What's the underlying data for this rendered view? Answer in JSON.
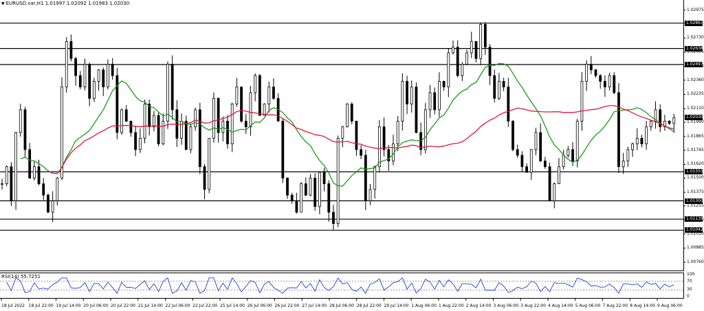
{
  "header": {
    "symbol_line": "EURUSD.var,H1  1.01997 1.02092 1.01983 1.02030",
    "collapse_icon": "triangle-down-icon"
  },
  "price_axis": {
    "ticks": [
      "1.02975",
      "1.02861",
      "1.02730",
      "1.02605",
      "1.02480",
      "1.02360",
      "1.02235",
      "1.02110",
      "1.01990",
      "1.01865",
      "1.01745",
      "1.01620",
      "1.01500",
      "1.01375",
      "1.01255",
      "1.01130",
      "1.01010",
      "1.00885",
      "1.00760"
    ],
    "ylim": [
      1.007,
      1.0304
    ]
  },
  "levels": [
    {
      "price": 1.02861,
      "label": "1.02861"
    },
    {
      "price": 1.02638,
      "label": "1.02638"
    },
    {
      "price": 1.02497,
      "label": "1.02497"
    },
    {
      "price": 1.0203,
      "label": "1.02030"
    },
    {
      "price": 1.01555,
      "label": "1.01555"
    },
    {
      "price": 1.013,
      "label": "1.01300"
    },
    {
      "price": 1.01139,
      "label": "1.01139"
    },
    {
      "price": 1.01042,
      "label": "1.01042"
    }
  ],
  "horizontal_lines": [
    1.02861,
    1.02638,
    1.02497,
    1.01555,
    1.013,
    1.01139,
    1.01042
  ],
  "current_price": "1.02030",
  "time_axis": [
    "18 Jul 2022",
    "18 Jul 22:00",
    "19 Jul 14:00",
    "20 Jul 06:00",
    "20 Jul 22:00",
    "21 Jul 14:00",
    "22 Jul 06:00",
    "22 Jul 22:00",
    "25 Jul 14:00",
    "26 Jul 06:00",
    "26 Jul 22:00",
    "27 Jul 14:00",
    "28 Jul 06:00",
    "28 Jul 22:00",
    "29 Jul 14:00",
    "1 Aug 06:00",
    "1 Aug 22:00",
    "2 Aug 14:00",
    "3 Aug 06:00",
    "3 Aug 22:00",
    "4 Aug 14:00",
    "5 Aug 06:00",
    "7 Aug 22:00",
    "8 Aug 14:00",
    "9 Aug 06:00"
  ],
  "rsi": {
    "title": "RSI(14) 55.7251",
    "levels": [
      "100",
      "70",
      "30",
      "0"
    ],
    "level_values": [
      100,
      70,
      30,
      0
    ]
  },
  "chart_data": {
    "type": "candlestick",
    "symbol": "EURUSD.var",
    "timeframe": "H1",
    "ohlc_last": {
      "open": 1.01997,
      "high": 1.02092,
      "low": 1.01983,
      "close": 1.0203
    },
    "close_path": [
      1.0145,
      1.016,
      1.013,
      1.019,
      1.021,
      1.0175,
      1.015,
      1.016,
      1.0145,
      1.0135,
      1.012,
      1.013,
      1.015,
      1.023,
      1.027,
      1.0255,
      1.024,
      1.023,
      1.025,
      1.022,
      1.0235,
      1.0245,
      1.023,
      1.025,
      1.024,
      1.019,
      1.021,
      1.02,
      1.019,
      1.0175,
      1.0185,
      1.0215,
      1.0195,
      1.0205,
      1.018,
      1.02,
      1.025,
      1.021,
      1.0185,
      1.02,
      1.0175,
      1.0195,
      1.021,
      1.016,
      1.014,
      1.0185,
      1.022,
      1.019,
      1.02,
      1.018,
      1.0215,
      1.023,
      1.02,
      1.0195,
      1.0225,
      1.024,
      1.0205,
      1.0215,
      1.023,
      1.022,
      1.02,
      1.015,
      1.0135,
      1.013,
      1.012,
      1.0145,
      1.0135,
      1.015,
      1.0125,
      1.0155,
      1.0145,
      1.012,
      1.011,
      1.0185,
      1.0195,
      1.0215,
      1.02,
      1.0175,
      1.017,
      1.013,
      1.014,
      1.016,
      1.0195,
      1.0175,
      1.0165,
      1.018,
      1.02,
      1.0235,
      1.0215,
      1.023,
      1.019,
      1.0175,
      1.021,
      1.0225,
      1.021,
      1.0235,
      1.023,
      1.026,
      1.0265,
      1.024,
      1.025,
      1.026,
      1.027,
      1.0255,
      1.0285,
      1.0265,
      1.024,
      1.022,
      1.0235,
      1.023,
      1.02,
      1.0175,
      1.017,
      1.016,
      1.0155,
      1.0175,
      1.019,
      1.0165,
      1.016,
      1.013,
      1.0145,
      1.016,
      1.017,
      1.0175,
      1.0165,
      1.02,
      1.0235,
      1.025,
      1.0245,
      1.024,
      1.0235,
      1.023,
      1.024,
      1.0225,
      1.016,
      1.0165,
      1.0175,
      1.018,
      1.0185,
      1.018,
      1.0195,
      1.02,
      1.021,
      1.0195,
      1.02,
      1.0198,
      1.0203
    ]
  }
}
